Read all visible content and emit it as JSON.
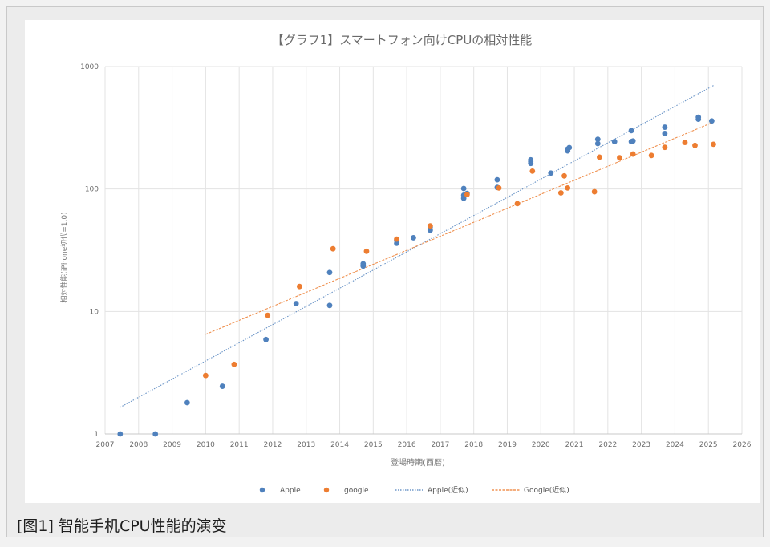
{
  "caption": "[图1] 智能手机CPU性能的演变",
  "chart_data": {
    "type": "scatter",
    "title": "【グラフ1】スマートフォン向けCPUの相対性能",
    "xlabel": "登場時期(西暦)",
    "ylabel": "相対性能(iPhone初代=1.0)",
    "y_scale": "log",
    "xlim": [
      2007,
      2026
    ],
    "ylim": [
      1,
      1000
    ],
    "x_ticks": [
      "2007",
      "2008",
      "2009",
      "2010",
      "2011",
      "2012",
      "2013",
      "2014",
      "2015",
      "2016",
      "2017",
      "2018",
      "2019",
      "2020",
      "2021",
      "2022",
      "2023",
      "2024",
      "2025",
      "2026"
    ],
    "y_ticks": [
      "1",
      "10",
      "100",
      "1000"
    ],
    "grid": true,
    "legend_position": "bottom",
    "colors": {
      "apple": "#4f81bd",
      "google": "#ed7d31"
    },
    "series": [
      {
        "name": "Apple",
        "points": [
          [
            2007.45,
            1.0
          ],
          [
            2008.5,
            1.0
          ],
          [
            2009.45,
            1.8
          ],
          [
            2010.5,
            2.45
          ],
          [
            2011.8,
            5.9
          ],
          [
            2012.7,
            11.6
          ],
          [
            2013.7,
            11.2
          ],
          [
            2013.7,
            20.8
          ],
          [
            2014.7,
            23.5
          ],
          [
            2014.7,
            24.5
          ],
          [
            2015.7,
            36
          ],
          [
            2015.7,
            38
          ],
          [
            2016.2,
            40
          ],
          [
            2016.7,
            46
          ],
          [
            2016.7,
            49
          ],
          [
            2017.7,
            84
          ],
          [
            2017.7,
            89
          ],
          [
            2017.7,
            101
          ],
          [
            2017.8,
            92
          ],
          [
            2018.7,
            103
          ],
          [
            2018.7,
            119
          ],
          [
            2019.7,
            162
          ],
          [
            2019.7,
            168
          ],
          [
            2019.7,
            173
          ],
          [
            2020.3,
            135
          ],
          [
            2020.8,
            205
          ],
          [
            2020.8,
            212
          ],
          [
            2020.85,
            218
          ],
          [
            2021.7,
            235
          ],
          [
            2021.7,
            255
          ],
          [
            2022.2,
            244
          ],
          [
            2022.7,
            244
          ],
          [
            2022.75,
            247
          ],
          [
            2022.7,
            300
          ],
          [
            2023.7,
            284
          ],
          [
            2023.7,
            320
          ],
          [
            2024.7,
            372
          ],
          [
            2024.7,
            386
          ],
          [
            2025.1,
            360
          ]
        ]
      },
      {
        "name": "google",
        "points": [
          [
            2010.0,
            3.0
          ],
          [
            2010.85,
            3.7
          ],
          [
            2011.85,
            9.3
          ],
          [
            2012.8,
            16
          ],
          [
            2013.8,
            32.5
          ],
          [
            2014.8,
            31
          ],
          [
            2015.7,
            39
          ],
          [
            2016.7,
            50
          ],
          [
            2017.8,
            90
          ],
          [
            2018.75,
            102
          ],
          [
            2019.3,
            76
          ],
          [
            2019.75,
            140
          ],
          [
            2020.6,
            93
          ],
          [
            2020.7,
            128
          ],
          [
            2020.8,
            102
          ],
          [
            2021.6,
            95
          ],
          [
            2021.75,
            182
          ],
          [
            2022.35,
            180
          ],
          [
            2022.75,
            193
          ],
          [
            2023.3,
            188
          ],
          [
            2023.7,
            219
          ],
          [
            2024.3,
            240
          ],
          [
            2024.6,
            227
          ],
          [
            2025.15,
            232
          ]
        ]
      }
    ],
    "trendlines": [
      {
        "name": "Apple(近似)",
        "x": [
          2007.45,
          2025.15
        ],
        "y": [
          1.65,
          700
        ]
      },
      {
        "name": "Google(近似)",
        "x": [
          2010.0,
          2025.15
        ],
        "y": [
          6.5,
          352
        ]
      }
    ]
  }
}
